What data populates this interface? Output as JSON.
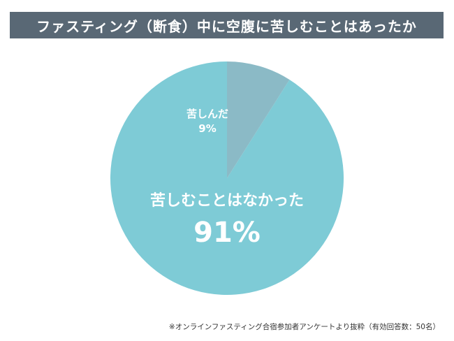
{
  "header": {
    "title": "ファスティング（断食）中に空腹に苦しむことはあったか"
  },
  "chart_data": {
    "type": "pie",
    "title": "ファスティング（断食）中に空腹に苦しむことはあったか",
    "start_angle_deg": 0,
    "direction": "counterclockwise",
    "slices": [
      {
        "label": "苦しむことはなかった",
        "value": 91,
        "value_label": "91%",
        "color": "#7ecbd6"
      },
      {
        "label": "苦しんだ",
        "value": 9,
        "value_label": "9%",
        "color": "#8bbac6"
      }
    ]
  },
  "footnote": "※オンラインファスティング合宿参加者アンケートより抜粋（有効回答数：50名）"
}
